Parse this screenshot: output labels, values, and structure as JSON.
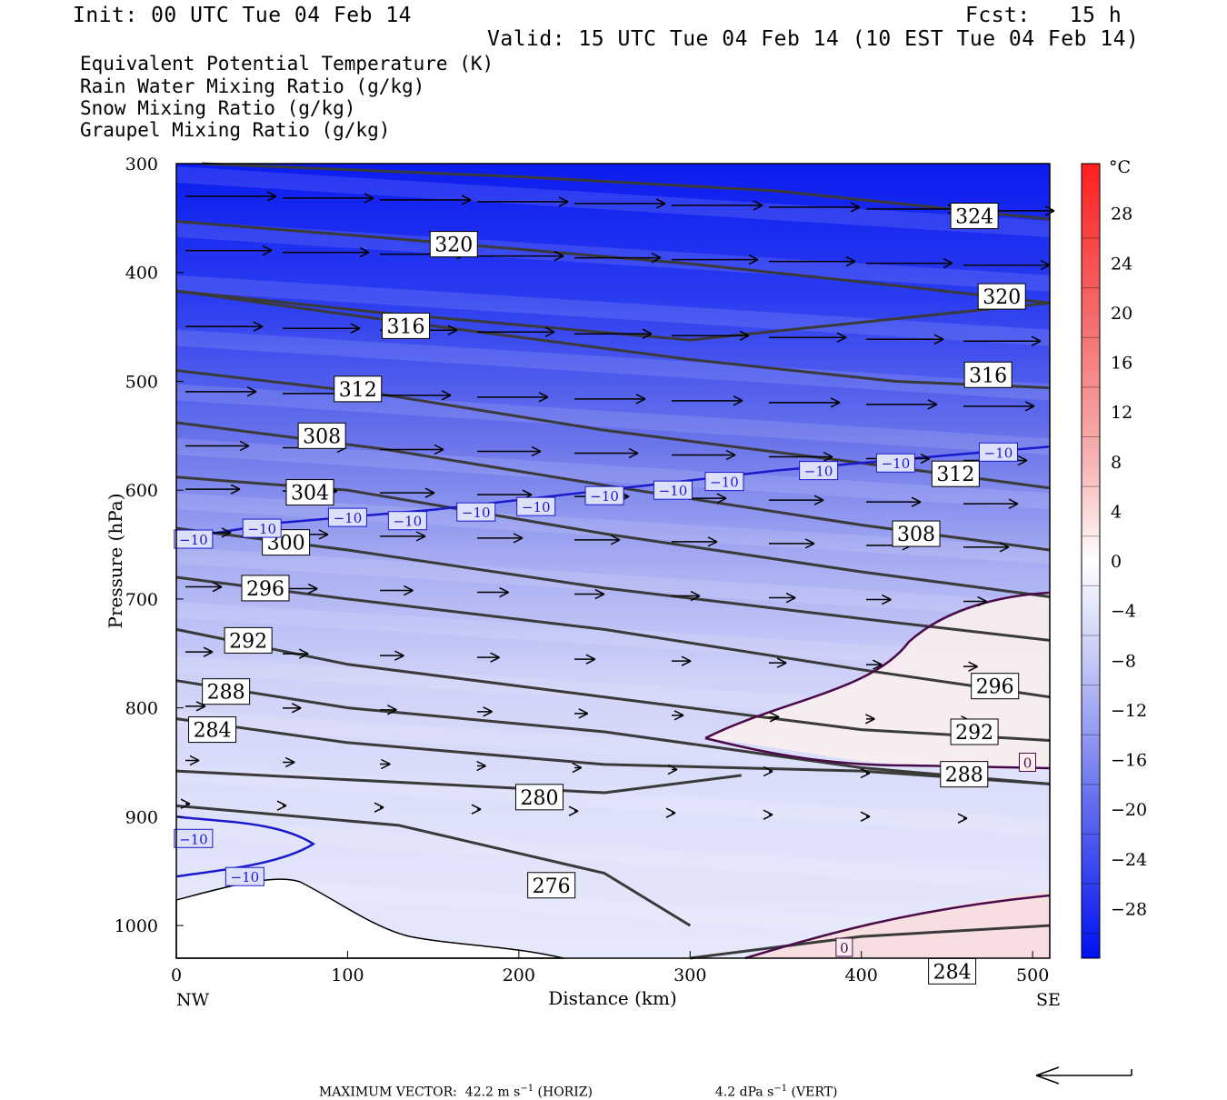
{
  "header": {
    "init": "Init: 00 UTC Tue 04 Feb 14",
    "fcst": "Fcst:   15 h",
    "valid": "Valid: 15 UTC Tue 04 Feb 14 (10 EST Tue 04 Feb 14)"
  },
  "legend": [
    {
      "text": "Equivalent Potential Temperature (K)",
      "color": "#555555"
    },
    {
      "text": "Rain Water Mixing Ratio (g/kg)",
      "color": "#1a7a1a"
    },
    {
      "text": "Snow Mixing Ratio (g/kg)",
      "color": "#f08a4b"
    },
    {
      "text": "Graupel Mixing Ratio (g/kg)",
      "color": "#ee82ee"
    }
  ],
  "chart_data": {
    "type": "cross-section",
    "xlabel": "Distance (km)",
    "ylabel": "Pressure (hPa)",
    "xlim": [
      0,
      510
    ],
    "ylim": [
      1030,
      300
    ],
    "x_ticks": [
      "0",
      "100",
      "200",
      "300",
      "400",
      "500"
    ],
    "y_ticks": [
      "300",
      "400",
      "500",
      "600",
      "700",
      "800",
      "900",
      "1000"
    ],
    "x_end_labels": {
      "left": "NW",
      "right": "SE"
    },
    "colorbar": {
      "unit": "°C",
      "range": [
        -32,
        32
      ],
      "labels": [
        "28",
        "24",
        "20",
        "16",
        "12",
        "8",
        "4",
        "0",
        "−4",
        "−8",
        "−12",
        "−16",
        "−20",
        "−24",
        "−28"
      ]
    },
    "theta_e_contours": [
      {
        "label": "324",
        "points": [
          [
            15,
            300
          ],
          [
            200,
            312
          ],
          [
            350,
            325
          ],
          [
            510,
            351
          ]
        ],
        "label_at": [
          466,
          348
        ]
      },
      {
        "label": "320",
        "points": [
          [
            0,
            353
          ],
          [
            120,
            368
          ],
          [
            300,
            392
          ],
          [
            420,
            412
          ],
          [
            510,
            428
          ]
        ],
        "label_at": [
          162,
          374
        ]
      },
      {
        "label": "320",
        "points": [
          [
            0,
            417
          ],
          [
            120,
            437
          ],
          [
            300,
            462
          ],
          [
            510,
            428
          ]
        ],
        "label_at": [
          482,
          422
        ]
      },
      {
        "label": "316",
        "points": [
          [
            0,
            417
          ],
          [
            120,
            443
          ],
          [
            300,
            480
          ],
          [
            420,
            500
          ],
          [
            510,
            506
          ]
        ],
        "label_at": [
          134,
          449
        ]
      },
      {
        "label": "316",
        "points": [
          [
            0,
            417
          ],
          [
            120,
            443
          ],
          [
            300,
            480
          ],
          [
            420,
            500
          ],
          [
            510,
            506
          ]
        ],
        "label_at": [
          474,
          494
        ]
      },
      {
        "label": "312",
        "points": [
          [
            0,
            490
          ],
          [
            120,
            512
          ],
          [
            250,
            545
          ],
          [
            400,
            575
          ],
          [
            510,
            598
          ]
        ],
        "label_at": [
          106,
          507
        ]
      },
      {
        "label": "312",
        "points": [
          [
            0,
            490
          ],
          [
            120,
            512
          ],
          [
            250,
            545
          ],
          [
            400,
            575
          ],
          [
            510,
            598
          ]
        ],
        "label_at": [
          455,
          585
        ]
      },
      {
        "label": "308",
        "points": [
          [
            0,
            538
          ],
          [
            120,
            562
          ],
          [
            260,
            598
          ],
          [
            400,
            632
          ],
          [
            510,
            655
          ]
        ],
        "label_at": [
          85,
          550
        ]
      },
      {
        "label": "308",
        "points": [
          [
            0,
            538
          ],
          [
            120,
            562
          ],
          [
            260,
            598
          ],
          [
            400,
            632
          ],
          [
            510,
            655
          ]
        ],
        "label_at": [
          432,
          640
        ]
      },
      {
        "label": "304",
        "points": [
          [
            0,
            588
          ],
          [
            100,
            600
          ],
          [
            250,
            640
          ],
          [
            400,
            675
          ],
          [
            510,
            698
          ]
        ],
        "label_at": [
          78,
          602
        ]
      },
      {
        "label": "300",
        "points": [
          [
            0,
            635
          ],
          [
            100,
            655
          ],
          [
            250,
            690
          ],
          [
            400,
            718
          ],
          [
            510,
            738
          ]
        ],
        "label_at": [
          64,
          648
        ]
      },
      {
        "label": "296",
        "points": [
          [
            0,
            680
          ],
          [
            100,
            700
          ],
          [
            250,
            728
          ],
          [
            400,
            765
          ],
          [
            510,
            790
          ]
        ],
        "label_at": [
          52,
          690
        ]
      },
      {
        "label": "296",
        "points": [
          [
            0,
            680
          ],
          [
            100,
            700
          ],
          [
            250,
            728
          ],
          [
            400,
            765
          ],
          [
            510,
            790
          ]
        ],
        "label_at": [
          478,
          780
        ]
      },
      {
        "label": "292",
        "points": [
          [
            0,
            728
          ],
          [
            100,
            760
          ],
          [
            250,
            790
          ],
          [
            400,
            820
          ],
          [
            510,
            830
          ]
        ],
        "label_at": [
          42,
          738
        ]
      },
      {
        "label": "292",
        "points": [
          [
            0,
            728
          ],
          [
            100,
            760
          ],
          [
            250,
            790
          ],
          [
            400,
            820
          ],
          [
            510,
            830
          ]
        ],
        "label_at": [
          466,
          822
        ]
      },
      {
        "label": "288",
        "points": [
          [
            0,
            775
          ],
          [
            100,
            800
          ],
          [
            250,
            822
          ],
          [
            400,
            855
          ],
          [
            510,
            870
          ]
        ],
        "label_at": [
          29,
          785
        ]
      },
      {
        "label": "288",
        "points": [
          [
            0,
            775
          ],
          [
            100,
            800
          ],
          [
            250,
            822
          ],
          [
            400,
            855
          ],
          [
            510,
            870
          ]
        ],
        "label_at": [
          460,
          861
        ]
      },
      {
        "label": "284",
        "points": [
          [
            0,
            810
          ],
          [
            100,
            832
          ],
          [
            250,
            852
          ],
          [
            400,
            858
          ],
          [
            510,
            870
          ]
        ],
        "label_at": [
          21,
          820
        ]
      },
      {
        "label": "284",
        "points": [
          [
            300,
            1030
          ],
          [
            400,
            1010
          ],
          [
            510,
            1000
          ]
        ],
        "label_at": [
          453,
          1042
        ]
      },
      {
        "label": "280",
        "points": [
          [
            0,
            858
          ],
          [
            150,
            870
          ],
          [
            250,
            878
          ],
          [
            330,
            862
          ]
        ],
        "label_at": [
          212,
          882
        ]
      },
      {
        "label": "276",
        "points": [
          [
            0,
            890
          ],
          [
            130,
            908
          ],
          [
            250,
            952
          ],
          [
            300,
            1000
          ]
        ],
        "label_at": [
          219,
          963
        ]
      }
    ],
    "temperature_contours": [
      {
        "label": "−10",
        "color": "#1a1acc"
      },
      {
        "label": "0",
        "color": "#4a0a4a"
      }
    ],
    "vector_scale": {
      "max_horiz": "MAXIMUM VECTOR:  42.2 m s",
      "max_horiz_unit": "−1",
      "max_horiz_tail": " (HORIZ)",
      "max_vert": "4.2 dPa s",
      "max_vert_unit": "−1",
      "max_vert_tail": " (VERT)"
    }
  }
}
